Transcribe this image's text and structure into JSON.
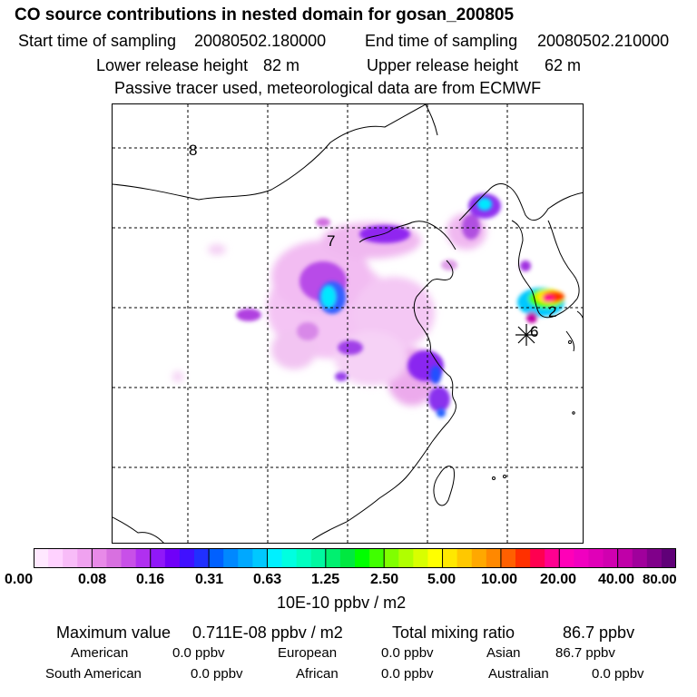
{
  "header": {
    "title": "CO  source contributions in nested domain for gosan_200805",
    "start_label": "Start time of sampling",
    "start_value": "20080502.180000",
    "end_label": "End time of sampling",
    "end_value": "20080502.210000",
    "lower_label": "Lower release height",
    "lower_value": "82 m",
    "upper_label": "Upper release height",
    "upper_value": "62 m",
    "tracer_note": "Passive tracer used, meteorological data are from ECMWF"
  },
  "map": {
    "labels": {
      "day8": "8",
      "day7": "7",
      "day6": "6",
      "day2": "2"
    },
    "colors": {
      "coast": "#000000",
      "grid": "#000000"
    }
  },
  "colorbar": {
    "ticks": [
      "0.00",
      "0.08",
      "0.16",
      "0.31",
      "0.63",
      "1.25",
      "2.50",
      "5.00",
      "10.00",
      "20.00",
      "40.00",
      "80.00"
    ],
    "colors": [
      "#ffe8ff",
      "#ffd2ff",
      "#f8bcf8",
      "#f0a2f0",
      "#e88ae8",
      "#d870e0",
      "#c850e8",
      "#b030f0",
      "#9018f8",
      "#7000f8",
      "#4010ff",
      "#2030ff",
      "#0060ff",
      "#0088ff",
      "#00a8ff",
      "#00c8ff",
      "#00f0ff",
      "#00ffe0",
      "#00ffc0",
      "#00f8a0",
      "#00f070",
      "#00e840",
      "#00ff00",
      "#40ff00",
      "#80ff00",
      "#b0ff00",
      "#d8ff00",
      "#ffff00",
      "#ffe800",
      "#ffc800",
      "#ffa800",
      "#ff8800",
      "#ff6000",
      "#ff3000",
      "#ff0050",
      "#ff0090",
      "#ff00b8",
      "#f000c0",
      "#e000b8",
      "#d000b0",
      "#c000a8",
      "#a0009c",
      "#80008a",
      "#600078"
    ],
    "units": "10E-10 ppbv / m2"
  },
  "summary": {
    "max_label": "Maximum value",
    "max_value": "0.711E-08 ppbv / m2",
    "total_label": "Total mixing ratio",
    "total_value": "86.7 ppbv",
    "regions": [
      {
        "name": "American",
        "value": "0.0 ppbv"
      },
      {
        "name": "European",
        "value": "0.0 ppbv"
      },
      {
        "name": "Asian",
        "value": "86.7 ppbv"
      },
      {
        "name": "South American",
        "value": "0.0 ppbv"
      },
      {
        "name": "African",
        "value": "0.0 ppbv"
      },
      {
        "name": "Australian",
        "value": "0.0 ppbv"
      }
    ]
  }
}
